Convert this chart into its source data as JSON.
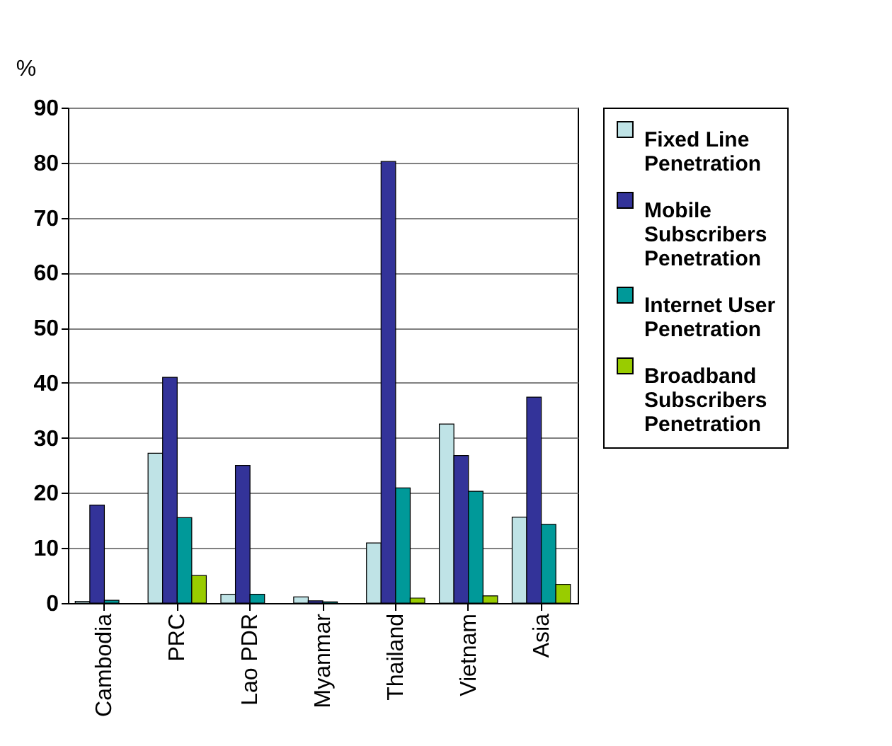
{
  "chart_data": {
    "type": "bar",
    "ylabel": "%",
    "categories": [
      "Cambodia",
      "PRC",
      "Lao PDR",
      "Myanmar",
      "Thailand",
      "Vietnam",
      "Asia"
    ],
    "series": [
      {
        "name": "Fixed Line Penetration",
        "color": "#bfe3e6",
        "values": [
          0.3,
          27.2,
          1.6,
          1.1,
          10.9,
          32.5,
          15.6
        ]
      },
      {
        "name": "Mobile Subscribers Penetration",
        "color": "#333399",
        "values": [
          17.8,
          41,
          25,
          0.4,
          80.2,
          26.8,
          37.4
        ]
      },
      {
        "name": "Internet User Penetration",
        "color": "#009999",
        "values": [
          0.5,
          15.5,
          1.6,
          0.2,
          20.9,
          20.3,
          14.3
        ]
      },
      {
        "name": "Broadband Subscribers Penetration",
        "color": "#99cc00",
        "values": [
          null,
          5,
          null,
          null,
          0.9,
          1.3,
          3.4
        ]
      }
    ],
    "ylim": [
      0,
      90
    ],
    "yticks": [
      0,
      10,
      20,
      30,
      40,
      50,
      60,
      70,
      80,
      90
    ],
    "grid": "y",
    "legend": "right"
  }
}
